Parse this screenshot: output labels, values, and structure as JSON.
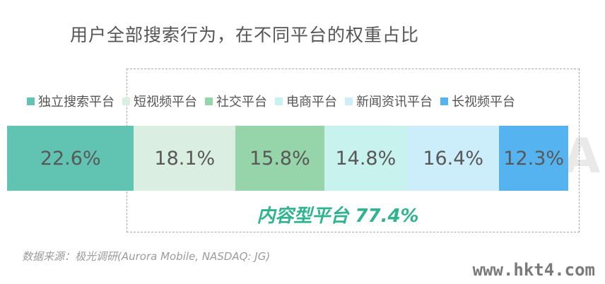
{
  "chart_data": {
    "type": "bar",
    "stacked": true,
    "orientation": "horizontal",
    "title": "用户全部搜索行为，在不同平台的权重占比",
    "legend_position": "top",
    "series": [
      {
        "name": "独立搜索平台",
        "value": 22.6,
        "label": "22.6%",
        "color": "#61c3b1"
      },
      {
        "name": "短视频平台",
        "value": 18.1,
        "label": "18.1%",
        "color": "#dbeee2"
      },
      {
        "name": "社交平台",
        "value": 15.8,
        "label": "15.8%",
        "color": "#96d4a9"
      },
      {
        "name": "电商平台",
        "value": 14.8,
        "label": "14.8%",
        "color": "#c7f2ee"
      },
      {
        "name": "新闻资讯平台",
        "value": 16.4,
        "label": "16.4%",
        "color": "#ccedfa"
      },
      {
        "name": "长视频平台",
        "value": 12.3,
        "label": "12.3%",
        "color": "#55b3ef"
      }
    ],
    "annotation": "内容型平台 77.4%",
    "source": "数据来源：极光调研(Aurora Mobile, NASDAQ: JG)"
  },
  "watermark": "URORA",
  "site_watermark": "www.hkt4.com"
}
